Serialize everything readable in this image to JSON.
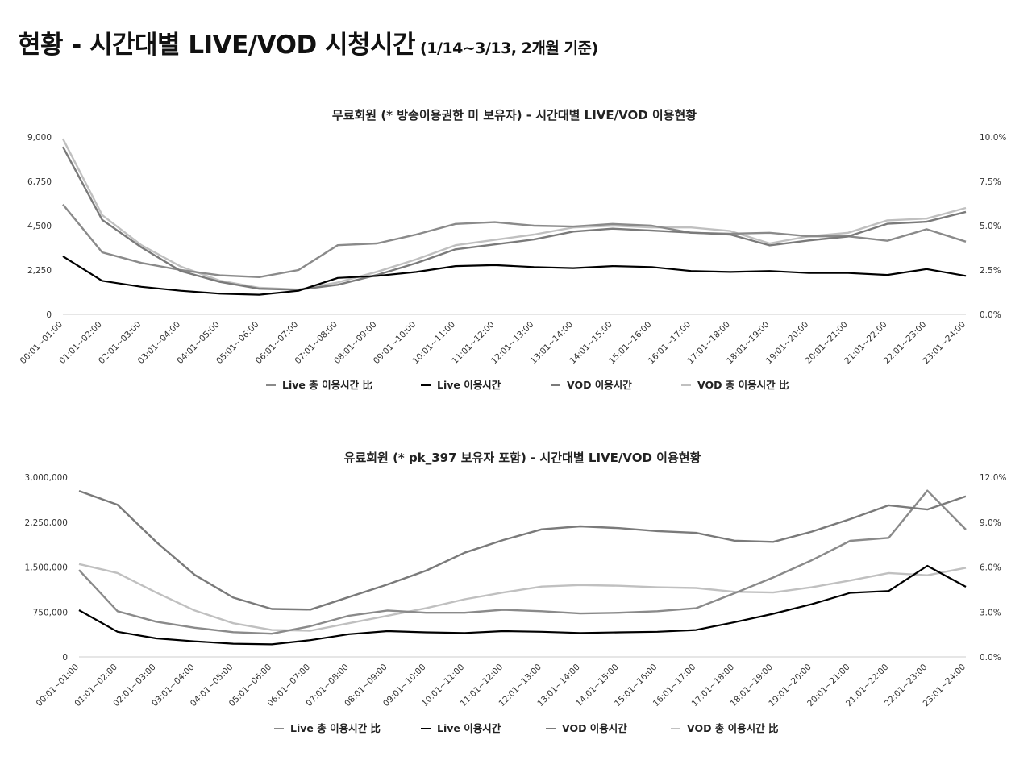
{
  "page": {
    "title": "현황 - 시간대별 LIVE/VOD 시청시간",
    "subtitle": "(1/14~3/13, 2개월 기준)"
  },
  "series_styles": [
    {
      "name": "Live 총 이용시간 比",
      "color": "#8a8a8a",
      "axis": "right"
    },
    {
      "name": "Live 이용시간",
      "color": "#000000",
      "axis": "left"
    },
    {
      "name": "VOD 이용시간",
      "color": "#7a7a7a",
      "axis": "left"
    },
    {
      "name": "VOD 총 이용시간 比",
      "color": "#c0c0c0",
      "axis": "right"
    }
  ],
  "chart_data": [
    {
      "type": "line",
      "title": "무료회원 (* 방송이용권한 미 보유자) - 시간대별 LIVE/VOD 이용현황",
      "categories": [
        "00:01~01:00",
        "01:01~02:00",
        "02:01~03:00",
        "03:01~04:00",
        "04:01~05:00",
        "05:01~06:00",
        "06:01~07:00",
        "07:01~08:00",
        "08:01~09:00",
        "09:01~10:00",
        "10:01~11:00",
        "11:01~12:00",
        "12:01~13:00",
        "13:01~14:00",
        "14:01~15:00",
        "15:01~16:00",
        "16:01~17:00",
        "17:01~18:00",
        "18:01~19:00",
        "19:01~20:00",
        "20:01~21:00",
        "21:01~22:00",
        "22:01~23:00",
        "23:01~24:00"
      ],
      "left_ticks": [
        "0",
        "2,250",
        "4,500",
        "6,750",
        "9,000"
      ],
      "right_ticks": [
        "0.0%",
        "2.5%",
        "5.0%",
        "7.5%",
        "10.0%"
      ],
      "ylim_left": [
        0,
        9000
      ],
      "ylim_right": [
        0,
        10
      ],
      "legend": [
        "Live 총 이용시간 比",
        "Live 이용시간",
        "VOD 이용시간",
        "VOD 총 이용시간 比"
      ],
      "series": [
        {
          "name": "Live 총 이용시간 比",
          "axis": "right",
          "values": [
            6.2,
            3.5,
            2.9,
            2.5,
            2.2,
            2.1,
            2.5,
            3.9,
            4.0,
            4.5,
            5.1,
            5.2,
            5.0,
            4.95,
            5.1,
            5.0,
            4.6,
            4.55,
            4.6,
            4.4,
            4.4,
            4.15,
            4.8,
            4.1
          ]
        },
        {
          "name": "Live 이용시간",
          "axis": "left",
          "values": [
            2950,
            1700,
            1400,
            1200,
            1050,
            1000,
            1200,
            1850,
            1950,
            2150,
            2450,
            2500,
            2400,
            2350,
            2450,
            2400,
            2200,
            2150,
            2200,
            2100,
            2100,
            2000,
            2300,
            1950
          ]
        },
        {
          "name": "VOD 이용시간",
          "axis": "left",
          "values": [
            8500,
            4800,
            3400,
            2200,
            1650,
            1300,
            1250,
            1500,
            2000,
            2600,
            3300,
            3550,
            3800,
            4200,
            4350,
            4250,
            4150,
            4050,
            3500,
            3750,
            3950,
            4600,
            4700,
            5200
          ]
        },
        {
          "name": "VOD 총 이용시간 比",
          "axis": "right",
          "values": [
            9.9,
            5.6,
            3.9,
            2.7,
            1.9,
            1.5,
            1.4,
            1.8,
            2.4,
            3.1,
            3.9,
            4.2,
            4.5,
            4.9,
            5.0,
            4.9,
            4.9,
            4.7,
            4.0,
            4.4,
            4.6,
            5.3,
            5.4,
            6.0
          ]
        }
      ]
    },
    {
      "type": "line",
      "title": "유료회원 (* pk_397 보유자 포함) - 시간대별 LIVE/VOD 이용현황",
      "categories": [
        "00:01~01:00",
        "01:01~02:00",
        "02:01~03:00",
        "03:01~04:00",
        "04:01~05:00",
        "05:01~06:00",
        "06:01~07:00",
        "07:01~08:00",
        "08:01~09:00",
        "09:01~10:00",
        "10:01~11:00",
        "11:01~12:00",
        "12:01~13:00",
        "13:01~14:00",
        "14:01~15:00",
        "15:01~16:00",
        "16:01~17:00",
        "17:01~18:00",
        "18:01~19:00",
        "19:01~20:00",
        "20:01~21:00",
        "21:01~22:00",
        "22:01~23:00",
        "23:01~24:00"
      ],
      "left_ticks": [
        "0",
        "750,000",
        "1,500,000",
        "2,250,000",
        "3,000,000"
      ],
      "right_ticks": [
        "0.0%",
        "3.0%",
        "6.0%",
        "9.0%",
        "12.0%"
      ],
      "ylim_left": [
        0,
        3000000
      ],
      "ylim_right": [
        0,
        12
      ],
      "legend": [
        "Live 총 이용시간 比",
        "Live 이용시간",
        "VOD 이용시간",
        "VOD 총 이용시간 比"
      ],
      "series": [
        {
          "name": "Live 총 이용시간 比",
          "axis": "right",
          "values": [
            5.8,
            3.05,
            2.35,
            1.95,
            1.65,
            1.55,
            2.05,
            2.75,
            3.1,
            2.95,
            2.95,
            3.15,
            3.05,
            2.9,
            2.95,
            3.05,
            3.25,
            4.25,
            5.3,
            6.45,
            7.75,
            7.95,
            11.1,
            8.5
          ]
        },
        {
          "name": "Live 이용시간",
          "axis": "left",
          "values": [
            780000,
            420000,
            310000,
            260000,
            220000,
            210000,
            280000,
            380000,
            430000,
            410000,
            400000,
            430000,
            420000,
            400000,
            410000,
            420000,
            450000,
            580000,
            720000,
            880000,
            1070000,
            1100000,
            1520000,
            1170000
          ]
        },
        {
          "name": "VOD 이용시간",
          "axis": "left",
          "values": [
            2770000,
            2540000,
            1920000,
            1370000,
            990000,
            800000,
            790000,
            1000000,
            1210000,
            1440000,
            1740000,
            1950000,
            2130000,
            2180000,
            2150000,
            2100000,
            2070000,
            1940000,
            1920000,
            2090000,
            2300000,
            2530000,
            2460000,
            2680000
          ]
        },
        {
          "name": "VOD 총 이용시간 比",
          "axis": "right",
          "values": [
            6.2,
            5.6,
            4.3,
            3.1,
            2.25,
            1.8,
            1.75,
            2.25,
            2.75,
            3.25,
            3.85,
            4.3,
            4.7,
            4.8,
            4.75,
            4.65,
            4.6,
            4.35,
            4.3,
            4.65,
            5.1,
            5.6,
            5.45,
            5.95
          ]
        }
      ]
    }
  ]
}
